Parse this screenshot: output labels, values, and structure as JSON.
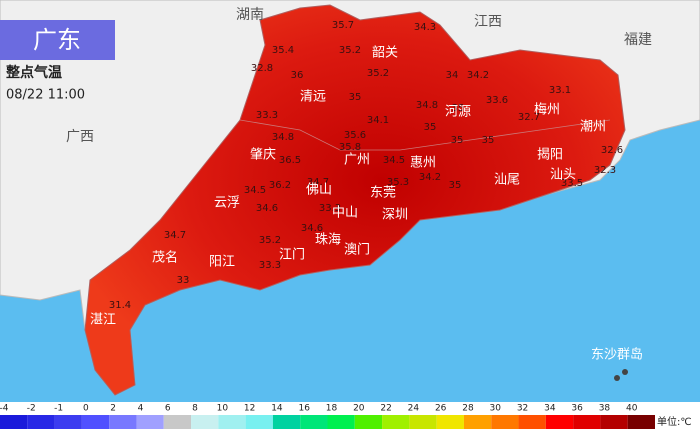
{
  "header": {
    "title": "广东",
    "subtitle": "整点气温",
    "time": "08/22 11:00"
  },
  "provinces": [
    "湖南",
    "江西",
    "福建",
    "广西"
  ],
  "cities": [
    "韶关",
    "清远",
    "河源",
    "梅州",
    "潮州",
    "肇庆",
    "广州",
    "惠州",
    "揭阳",
    "汕头",
    "汕尾",
    "云浮",
    "佛山",
    "东莞",
    "中山",
    "深圳",
    "珠海",
    "澳门",
    "江门",
    "阳江",
    "茂名",
    "湛江",
    "东沙群岛"
  ],
  "stations": [
    35.7,
    34.3,
    35.4,
    35.2,
    32.8,
    36,
    35.2,
    34,
    34.2,
    35,
    33.6,
    33.1,
    33.3,
    34.1,
    34.8,
    35,
    32.7,
    34.8,
    35.6,
    35,
    36.5,
    34.5,
    35,
    35,
    35.8,
    34.7,
    35.3,
    34.2,
    35,
    34.5,
    34.6,
    36.2,
    33.3,
    34.7,
    35.2,
    34.6,
    33.3,
    33,
    31.4,
    32.6,
    33.5,
    32.3
  ],
  "legend": {
    "ticks": [
      -4,
      -2,
      -1,
      0,
      2,
      4,
      6,
      8,
      10,
      12,
      14,
      16,
      18,
      20,
      22,
      24,
      26,
      28,
      30,
      32,
      34,
      36,
      38,
      40
    ],
    "colors": [
      "#1a1adb",
      "#2828e6",
      "#3c3cf0",
      "#5050ff",
      "#7878ff",
      "#a0a0ff",
      "#c8c8c8",
      "#c8f0f0",
      "#a0f0f0",
      "#78f0f0",
      "#00d2a0",
      "#00e678",
      "#00f050",
      "#50f000",
      "#a0f000",
      "#c8e600",
      "#f0e600",
      "#ffa000",
      "#ff7800",
      "#ff5000",
      "#ff0000",
      "#e00000",
      "#b40000",
      "#780000"
    ],
    "unit": "单位:℃"
  }
}
